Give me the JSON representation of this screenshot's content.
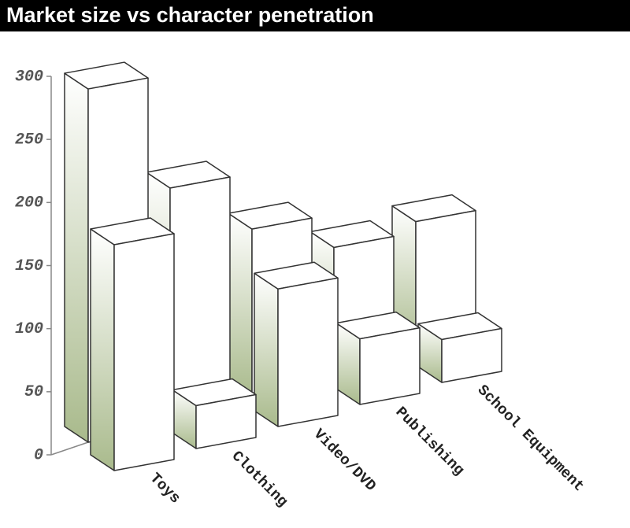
{
  "chart_data": {
    "type": "bar",
    "title": "Market size vs character penetration",
    "categories": [
      "Toys",
      "Clothing",
      "Video/DVD",
      "Publishing",
      "School Equipment"
    ],
    "series": [
      {
        "color": "#a9ba8c",
        "values": [
          280,
          184,
          134,
          102,
          105
        ]
      },
      {
        "color": "#a9ba8c",
        "values": [
          179,
          34,
          109,
          52,
          34
        ]
      }
    ],
    "ylim": [
      0,
      300
    ],
    "yticks": [
      0,
      50,
      100,
      150,
      200,
      250,
      300
    ]
  }
}
